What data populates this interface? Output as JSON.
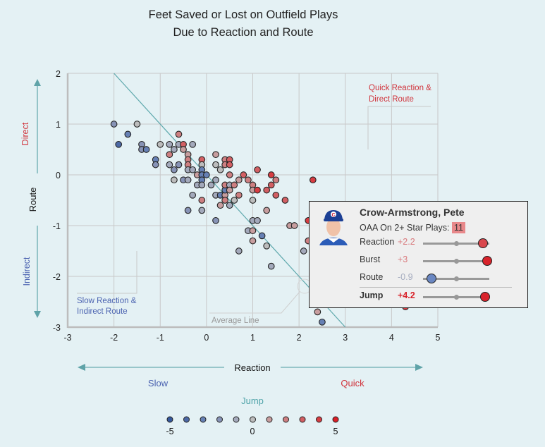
{
  "chart_data": {
    "type": "scatter",
    "title": [
      "Feet Saved or Lost on Outfield Plays",
      "Due to Reaction and Route"
    ],
    "xlabel": "Reaction",
    "ylabel": "Route",
    "xlim": [
      -3,
      5
    ],
    "ylim": [
      -3,
      2
    ],
    "x_ticks": [
      "-3",
      "-2",
      "-1",
      "0",
      "1",
      "2",
      "3",
      "4",
      "5"
    ],
    "y_ticks": [
      "2",
      "1",
      "0",
      "-1",
      "-2",
      "-3"
    ],
    "grid": true,
    "average_line": {
      "label": "Average Line",
      "from": [
        -2,
        2
      ],
      "to": [
        3,
        -3
      ]
    },
    "annotations": {
      "top_right": [
        "Quick Reaction &",
        "Direct Route"
      ],
      "bottom_left": [
        "Slow Reaction &",
        "Indirect Route"
      ]
    },
    "axis_words": {
      "y_top": "Direct",
      "y_bottom": "Indirect",
      "x_left": "Slow",
      "x_right": "Quick"
    },
    "legend": {
      "title": "Jump",
      "values": [
        -5,
        -4,
        -3,
        -2,
        -1,
        0,
        1,
        2,
        3,
        4,
        5
      ],
      "labels": [
        "-5",
        "0",
        "5"
      ],
      "placement": "bottom"
    },
    "colors": [
      "#35589c",
      "#4c69a6",
      "#6680b4",
      "#8793b6",
      "#a3a9bb",
      "#bcbcbc",
      "#c79d9e",
      "#cd7f81",
      "#d25f63",
      "#d73d42",
      "#da2028"
    ],
    "points": [
      {
        "x": -2.0,
        "y": 1.0,
        "jump": -2
      },
      {
        "x": -1.5,
        "y": 1.0,
        "jump": 0
      },
      {
        "x": -1.7,
        "y": 0.8,
        "jump": -3
      },
      {
        "x": -1.9,
        "y": 0.6,
        "jump": -4
      },
      {
        "x": -1.4,
        "y": 0.6,
        "jump": -2
      },
      {
        "x": -1.4,
        "y": 0.5,
        "jump": -2
      },
      {
        "x": -1.3,
        "y": 0.5,
        "jump": -3
      },
      {
        "x": -1.0,
        "y": 0.6,
        "jump": 0
      },
      {
        "x": -0.8,
        "y": 0.6,
        "jump": -1
      },
      {
        "x": -0.6,
        "y": 0.8,
        "jump": 2
      },
      {
        "x": -0.6,
        "y": 0.6,
        "jump": -1
      },
      {
        "x": -0.5,
        "y": 0.6,
        "jump": 3
      },
      {
        "x": -0.3,
        "y": 0.6,
        "jump": -1
      },
      {
        "x": -0.7,
        "y": 0.5,
        "jump": -1
      },
      {
        "x": -0.5,
        "y": 0.5,
        "jump": 1
      },
      {
        "x": -0.8,
        "y": 0.4,
        "jump": 2
      },
      {
        "x": -0.4,
        "y": 0.4,
        "jump": 1
      },
      {
        "x": -1.1,
        "y": 0.3,
        "jump": -3
      },
      {
        "x": -1.1,
        "y": 0.2,
        "jump": -2
      },
      {
        "x": -0.8,
        "y": 0.2,
        "jump": -1
      },
      {
        "x": -0.6,
        "y": 0.2,
        "jump": -2
      },
      {
        "x": -0.7,
        "y": 0.1,
        "jump": -2
      },
      {
        "x": -0.4,
        "y": 0.3,
        "jump": 2
      },
      {
        "x": -0.4,
        "y": 0.2,
        "jump": 2
      },
      {
        "x": -0.4,
        "y": 0.1,
        "jump": -1
      },
      {
        "x": -0.3,
        "y": 0.1,
        "jump": -1
      },
      {
        "x": -0.1,
        "y": 0.3,
        "jump": 3
      },
      {
        "x": -0.1,
        "y": 0.2,
        "jump": 0
      },
      {
        "x": -0.1,
        "y": 0.1,
        "jump": -3
      },
      {
        "x": -0.2,
        "y": 0.0,
        "jump": 1
      },
      {
        "x": -0.1,
        "y": 0.0,
        "jump": -3
      },
      {
        "x": 0.0,
        "y": 0.0,
        "jump": -3
      },
      {
        "x": -0.1,
        "y": -0.1,
        "jump": -3
      },
      {
        "x": -0.7,
        "y": -0.1,
        "jump": 0
      },
      {
        "x": -0.5,
        "y": -0.1,
        "jump": -2
      },
      {
        "x": -0.4,
        "y": -0.1,
        "jump": -1
      },
      {
        "x": -0.2,
        "y": -0.2,
        "jump": -1
      },
      {
        "x": -0.1,
        "y": -0.2,
        "jump": -1
      },
      {
        "x": 0.1,
        "y": -0.2,
        "jump": -1
      },
      {
        "x": 0.2,
        "y": 0.4,
        "jump": 1
      },
      {
        "x": 0.2,
        "y": 0.2,
        "jump": 0
      },
      {
        "x": 0.3,
        "y": 0.1,
        "jump": 0
      },
      {
        "x": 0.4,
        "y": 0.3,
        "jump": 2
      },
      {
        "x": 0.5,
        "y": 0.3,
        "jump": 3
      },
      {
        "x": 0.4,
        "y": 0.2,
        "jump": 2
      },
      {
        "x": 0.5,
        "y": 0.2,
        "jump": 3
      },
      {
        "x": 0.5,
        "y": 0.0,
        "jump": 2
      },
      {
        "x": 0.2,
        "y": -0.1,
        "jump": -1
      },
      {
        "x": -0.3,
        "y": -0.4,
        "jump": -1
      },
      {
        "x": -0.1,
        "y": -0.5,
        "jump": 2
      },
      {
        "x": -0.4,
        "y": -0.7,
        "jump": -2
      },
      {
        "x": -0.1,
        "y": -0.7,
        "jump": -1
      },
      {
        "x": 0.2,
        "y": -0.4,
        "jump": -1
      },
      {
        "x": 0.3,
        "y": -0.4,
        "jump": -3
      },
      {
        "x": 0.4,
        "y": -0.4,
        "jump": 1
      },
      {
        "x": 0.4,
        "y": -0.3,
        "jump": -3
      },
      {
        "x": 0.4,
        "y": -0.2,
        "jump": 2
      },
      {
        "x": 0.5,
        "y": -0.2,
        "jump": -1
      },
      {
        "x": 0.6,
        "y": -0.2,
        "jump": 2
      },
      {
        "x": 0.5,
        "y": -0.3,
        "jump": 1
      },
      {
        "x": 0.4,
        "y": -0.5,
        "jump": 2
      },
      {
        "x": 0.6,
        "y": -0.5,
        "jump": 0
      },
      {
        "x": 0.3,
        "y": -0.6,
        "jump": 1
      },
      {
        "x": 0.5,
        "y": -0.6,
        "jump": -1
      },
      {
        "x": 0.2,
        "y": -0.9,
        "jump": -2
      },
      {
        "x": 0.7,
        "y": -0.1,
        "jump": 1
      },
      {
        "x": 0.8,
        "y": 0.0,
        "jump": 3
      },
      {
        "x": 0.9,
        "y": -0.1,
        "jump": 2
      },
      {
        "x": 0.7,
        "y": -0.4,
        "jump": 2
      },
      {
        "x": 1.0,
        "y": -0.2,
        "jump": 2
      },
      {
        "x": 1.0,
        "y": -0.3,
        "jump": 1
      },
      {
        "x": 1.1,
        "y": -0.3,
        "jump": 4
      },
      {
        "x": 1.1,
        "y": 0.1,
        "jump": 3
      },
      {
        "x": 1.0,
        "y": -0.5,
        "jump": 0
      },
      {
        "x": 1.3,
        "y": -0.3,
        "jump": 3
      },
      {
        "x": 1.4,
        "y": 0.0,
        "jump": 4
      },
      {
        "x": 1.4,
        "y": -0.2,
        "jump": 3
      },
      {
        "x": 1.5,
        "y": -0.1,
        "jump": 2
      },
      {
        "x": 1.5,
        "y": -0.4,
        "jump": 3
      },
      {
        "x": 1.7,
        "y": -0.5,
        "jump": 3
      },
      {
        "x": 1.3,
        "y": -0.7,
        "jump": 1
      },
      {
        "x": 1.0,
        "y": -0.9,
        "jump": -1
      },
      {
        "x": 1.1,
        "y": -0.9,
        "jump": -1
      },
      {
        "x": 0.9,
        "y": -1.1,
        "jump": -1
      },
      {
        "x": 1.0,
        "y": -1.1,
        "jump": 1
      },
      {
        "x": 1.2,
        "y": -1.2,
        "jump": -3
      },
      {
        "x": 1.0,
        "y": -1.3,
        "jump": 1
      },
      {
        "x": 1.3,
        "y": -1.4,
        "jump": 0
      },
      {
        "x": 0.7,
        "y": -1.5,
        "jump": -1
      },
      {
        "x": 1.8,
        "y": -1.0,
        "jump": 1
      },
      {
        "x": 1.9,
        "y": -1.0,
        "jump": 1
      },
      {
        "x": 2.3,
        "y": -0.1,
        "jump": 4
      },
      {
        "x": 2.2,
        "y": -0.9,
        "jump": 4
      },
      {
        "x": 2.2,
        "y": -1.3,
        "jump": 2
      },
      {
        "x": 2.1,
        "y": -1.5,
        "jump": -1
      },
      {
        "x": 1.4,
        "y": -1.8,
        "jump": -1
      },
      {
        "x": 2.4,
        "y": -2.7,
        "jump": 1
      },
      {
        "x": 2.5,
        "y": -2.9,
        "jump": -3
      },
      {
        "x": 4.3,
        "y": -2.6,
        "jump": 4
      }
    ]
  },
  "tooltip": {
    "name": "Crow-Armstrong, Pete",
    "oaa_label": "OAA On 2+ Star Plays:",
    "oaa_value": "11",
    "rows": [
      {
        "label": "Reaction",
        "value": "+2.2",
        "fraction": 0.9,
        "color": "#d9474d",
        "text_color": "#d97b7e"
      },
      {
        "label": "Burst",
        "value": "+3",
        "fraction": 0.97,
        "color": "#d8232b",
        "text_color": "#d97b7e"
      },
      {
        "label": "Route",
        "value": "-0.9",
        "fraction": 0.13,
        "color": "#6a87c2",
        "text_color": "#a6adc0"
      },
      {
        "label": "Jump",
        "value": "+4.2",
        "fraction": 0.94,
        "color": "#d8232b",
        "text_color": "#d8232b"
      }
    ]
  }
}
